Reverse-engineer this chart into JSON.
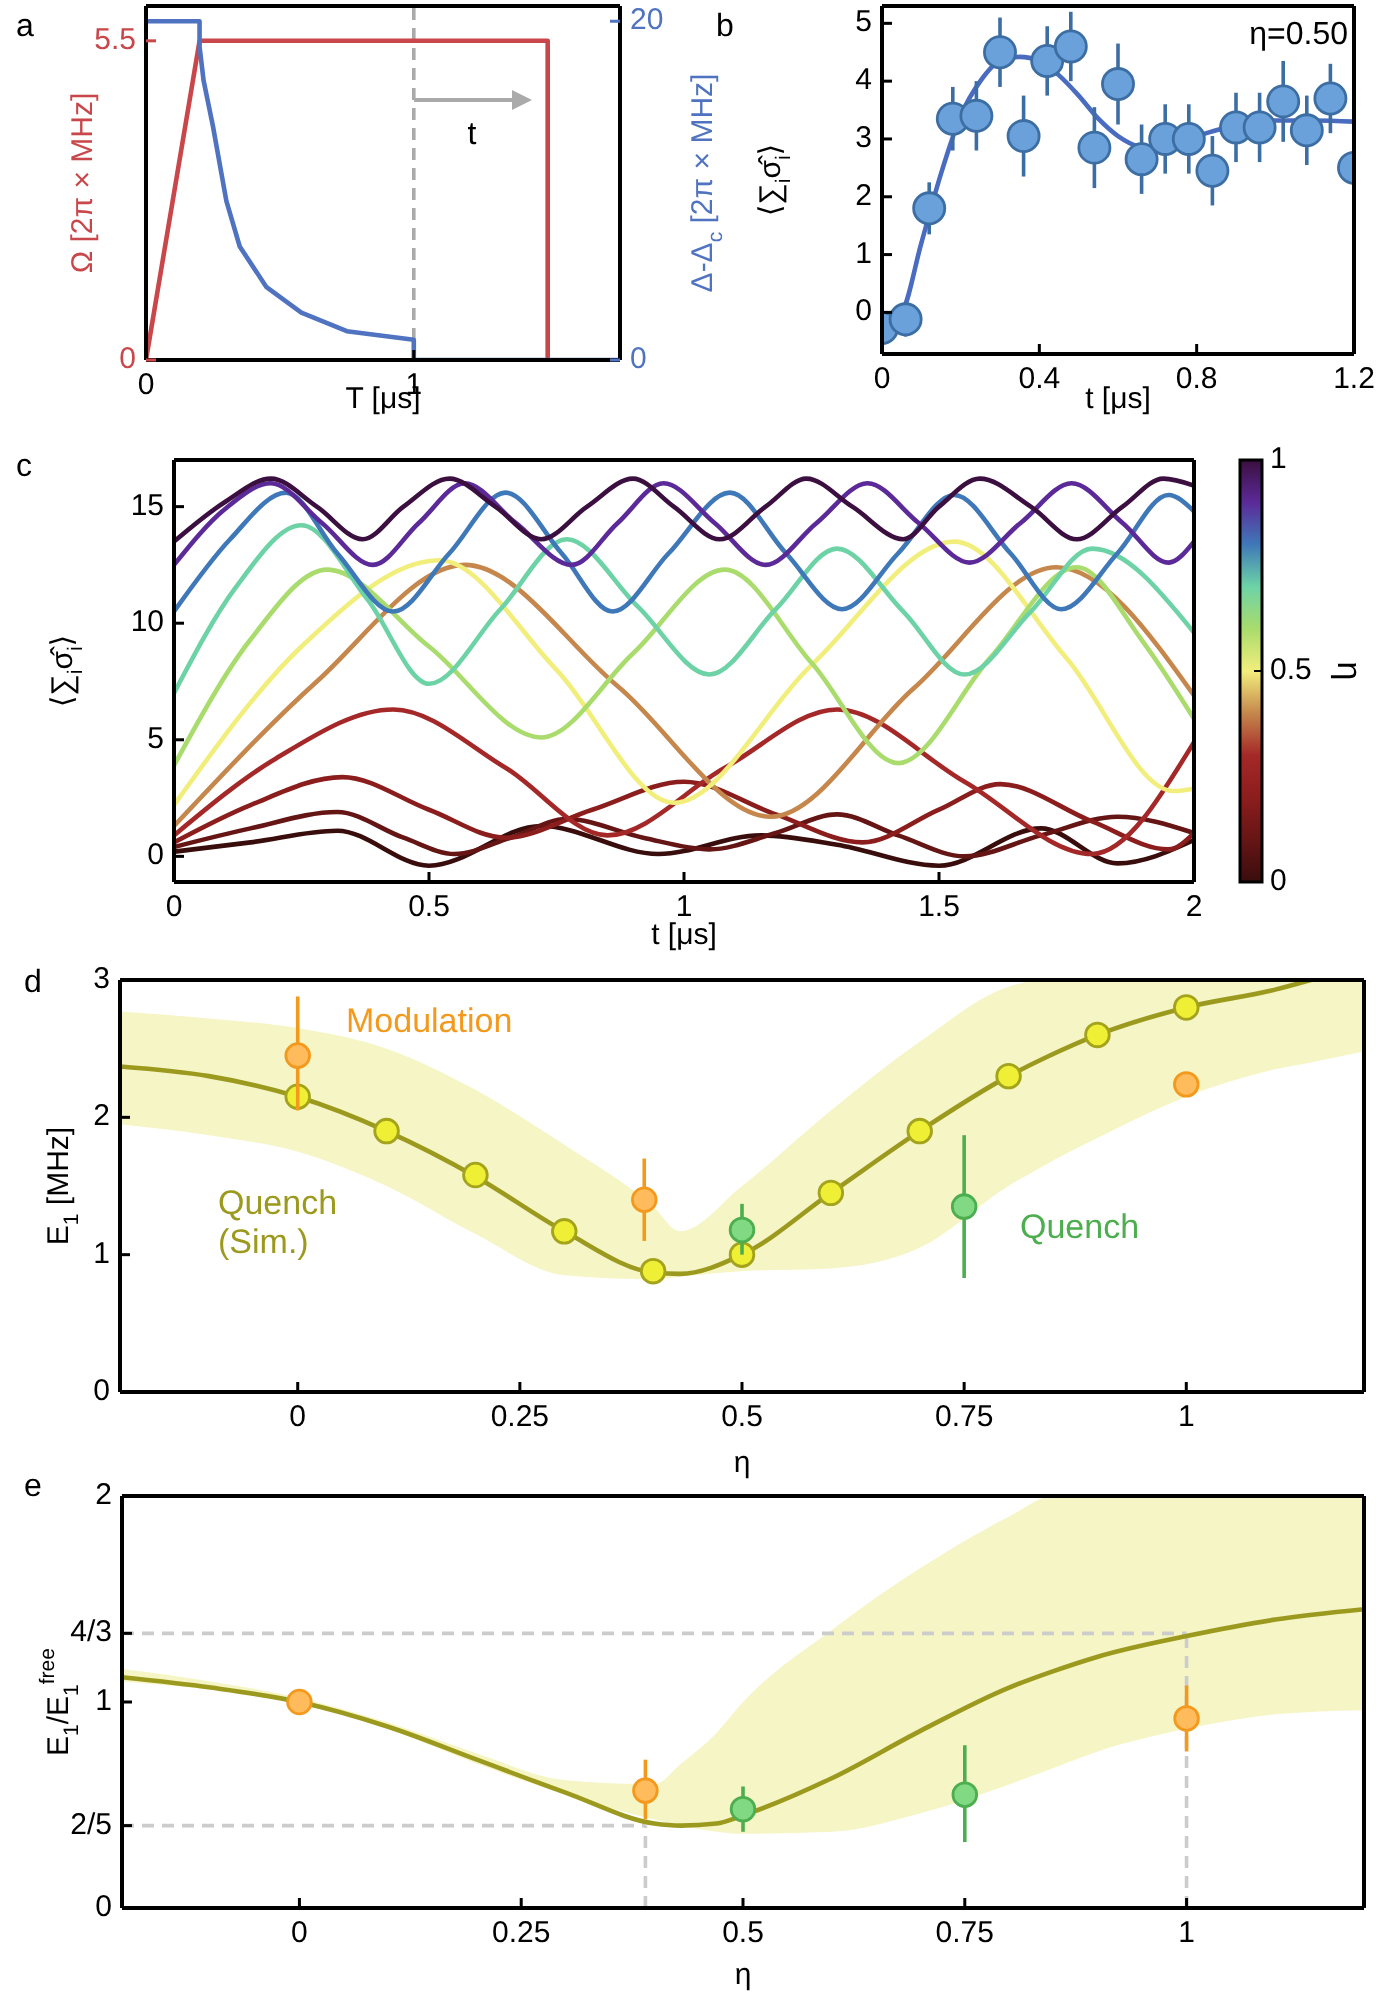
{
  "chart_data": [
    {
      "type": "line",
      "title": "a",
      "xlabel": "T [μs]",
      "ylabel": "Ω [2π × MHz]",
      "y2label": "Δ-Δ$_{c}$ [2π × MHz]",
      "xlim": [
        0,
        1.77
      ],
      "xticks": [
        0,
        1
      ],
      "ylim": [
        0,
        6.1
      ],
      "yticks": [
        0,
        5.5
      ],
      "y2lim": [
        0,
        20.9
      ],
      "y2ticks": [
        0,
        20
      ],
      "series": [
        {
          "color": "#c9474a",
          "x": [
            0,
            0.2,
            1.5,
            1.5
          ],
          "values": [
            0,
            5.5,
            5.5,
            0
          ]
        },
        {
          "color": "#4f73c0",
          "axis": "y2",
          "x": [
            0,
            0.2,
            0.2,
            0.215,
            0.25,
            0.3,
            0.35,
            0.45,
            0.58,
            0.75,
            1.0,
            1.0,
            1.77
          ],
          "values": [
            20,
            20,
            18.5,
            16.5,
            13.8,
            9.4,
            6.7,
            4.3,
            2.8,
            1.7,
            1.2,
            0,
            0
          ]
        }
      ],
      "ref_lines": [
        {
          "axis": "x",
          "value": 1,
          "color": "#aaaaaa",
          "line_style": "dashed"
        }
      ],
      "annotations": [
        "t"
      ]
    },
    {
      "type": "scatter",
      "title": "b",
      "xlabel": "t [μs]",
      "ylabel": "⟨∑$_{i}$σ̂$_{i}$⟩",
      "xlim": [
        0,
        1.2
      ],
      "xticks": [
        0,
        0.4,
        0.8,
        1.2
      ],
      "ylim": [
        -0.72,
        5.3
      ],
      "yticks": [
        0,
        1,
        2,
        3,
        4,
        5
      ],
      "series": [
        {
          "type": "line",
          "color": "#4a6cc0",
          "x": [
            0,
            0.05,
            0.1,
            0.15,
            0.2,
            0.25,
            0.3,
            0.35,
            0.4,
            0.45,
            0.5,
            0.55,
            0.6,
            0.65,
            0.7,
            0.75,
            0.8,
            0.85,
            0.9,
            0.95,
            1.0,
            1.1,
            1.2
          ],
          "values": [
            -0.2,
            0.0,
            1.2,
            2.4,
            3.4,
            4.0,
            4.35,
            4.42,
            4.35,
            4.1,
            3.75,
            3.35,
            3.05,
            2.88,
            2.85,
            2.92,
            3.05,
            3.15,
            3.25,
            3.3,
            3.32,
            3.32,
            3.3
          ]
        },
        {
          "marker": "circle",
          "color": "#3c6ea3",
          "x": [
            0,
            0.06,
            0.12,
            0.18,
            0.24,
            0.3,
            0.36,
            0.42,
            0.48,
            0.54,
            0.6,
            0.66,
            0.72,
            0.78,
            0.84,
            0.9,
            0.96,
            1.02,
            1.08,
            1.14,
            1.2
          ],
          "values": [
            -0.27,
            -0.12,
            1.8,
            3.35,
            3.4,
            4.5,
            3.05,
            4.35,
            4.6,
            2.85,
            3.95,
            2.65,
            3.0,
            3.0,
            2.45,
            3.2,
            3.2,
            3.65,
            3.15,
            3.7,
            2.5
          ],
          "errors": [
            0.3,
            0.3,
            0.45,
            0.55,
            0.6,
            0.6,
            0.7,
            0.6,
            0.6,
            0.7,
            0.7,
            0.6,
            0.6,
            0.6,
            0.6,
            0.6,
            0.6,
            0.7,
            0.6,
            0.6,
            null
          ]
        }
      ],
      "annotations": [
        "η=0.50"
      ]
    },
    {
      "type": "line",
      "title": "c",
      "xlabel": "t [μs]",
      "ylabel": "⟨∑$_{i}$σ̂$_{i}$⟩",
      "xlim": [
        0,
        2
      ],
      "xticks": [
        0,
        0.5,
        1,
        1.5,
        2
      ],
      "ylim": [
        -1.1,
        17
      ],
      "yticks": [
        0,
        5,
        10,
        15
      ],
      "clabel": "η",
      "clim": [
        0,
        1
      ],
      "cticks": [
        0,
        0.5,
        1
      ],
      "series": [
        {
          "color": "#3a0d0d",
          "x": [
            0,
            0.15,
            0.32,
            0.5,
            0.72,
            0.95,
            1.15,
            1.3,
            1.5,
            1.7,
            1.85,
            2
          ],
          "values": [
            0.2,
            0.6,
            1.1,
            -0.4,
            1.3,
            0.1,
            0.9,
            0.5,
            -0.4,
            1.2,
            -0.3,
            0.7
          ]
        },
        {
          "color": "#661515",
          "x": [
            0,
            0.15,
            0.32,
            0.45,
            0.55,
            0.66,
            0.77,
            0.92,
            1.05,
            1.18,
            1.3,
            1.42,
            1.55,
            1.7,
            1.85,
            2
          ],
          "values": [
            0.4,
            1.2,
            1.9,
            0.8,
            0.1,
            0.8,
            1.6,
            0.8,
            0.3,
            1,
            1.8,
            0.9,
            0,
            0.9,
            1.7,
            1.0
          ]
        },
        {
          "color": "#8c1d1d",
          "x": [
            0,
            0.15,
            0.33,
            0.5,
            0.65,
            0.82,
            1.0,
            1.18,
            1.35,
            1.5,
            1.62,
            1.8,
            1.95,
            2
          ],
          "values": [
            0.6,
            2.2,
            3.4,
            2,
            0.8,
            2,
            3.2,
            1.8,
            0.6,
            2,
            3.1,
            1.5,
            0.3,
            1.0
          ]
        },
        {
          "color": "#a52828",
          "x": [
            0,
            0.2,
            0.43,
            0.65,
            0.85,
            1.08,
            1.3,
            1.55,
            1.8,
            2
          ],
          "values": [
            0.9,
            4.2,
            6.3,
            3.8,
            0.9,
            3.8,
            6.3,
            3.2,
            0.1,
            4.9
          ]
        },
        {
          "color": "#c5874c",
          "x": [
            0,
            0.28,
            0.57,
            0.87,
            1.17,
            1.45,
            1.73,
            2
          ],
          "values": [
            1.3,
            7.5,
            12.5,
            7.3,
            1.7,
            7.2,
            12.4,
            6.9
          ]
        },
        {
          "color": "#f2ee7c",
          "x": [
            0,
            0.25,
            0.52,
            0.75,
            0.98,
            1.25,
            1.53,
            1.75,
            1.96,
            2
          ],
          "values": [
            2.2,
            9,
            12.7,
            8,
            2.3,
            8.2,
            13.5,
            8.5,
            2.8,
            2.9
          ]
        },
        {
          "color": "#a9dc6c",
          "x": [
            0,
            0.15,
            0.3,
            0.5,
            0.72,
            0.9,
            1.08,
            1.25,
            1.42,
            1.6,
            1.77,
            1.9,
            2
          ],
          "values": [
            3.9,
            9.3,
            12.3,
            9,
            5.1,
            8.7,
            12.3,
            8.3,
            4,
            8.5,
            12.4,
            9.2,
            5.9
          ]
        },
        {
          "color": "#6dd3a6",
          "x": [
            0,
            0.12,
            0.25,
            0.38,
            0.5,
            0.64,
            0.77,
            0.91,
            1.05,
            1.18,
            1.3,
            1.43,
            1.55,
            1.68,
            1.8,
            2
          ],
          "values": [
            7,
            11.5,
            14.2,
            11,
            7.4,
            10.6,
            13.6,
            10.7,
            7.8,
            10.6,
            13.2,
            10.5,
            7.8,
            10.5,
            13.2,
            9.6
          ]
        },
        {
          "color": "#3f78b8",
          "x": [
            0,
            0.11,
            0.22,
            0.32,
            0.43,
            0.54,
            0.65,
            0.76,
            0.86,
            0.97,
            1.09,
            1.2,
            1.31,
            1.42,
            1.53,
            1.64,
            1.74,
            1.85,
            1.95,
            2
          ],
          "values": [
            10.5,
            13.6,
            15.6,
            13,
            10.5,
            13,
            15.6,
            13,
            10.5,
            13,
            15.6,
            13,
            10.6,
            13,
            15.5,
            13,
            10.6,
            13,
            15.5,
            14.8
          ]
        },
        {
          "color": "#5b2a98",
          "x": [
            0,
            0.1,
            0.19,
            0.29,
            0.39,
            0.48,
            0.57,
            0.67,
            0.78,
            0.87,
            0.96,
            1.06,
            1.16,
            1.26,
            1.36,
            1.46,
            1.56,
            1.66,
            1.76,
            1.86,
            1.95,
            2
          ],
          "values": [
            12.5,
            14.9,
            16,
            14.3,
            12.5,
            14.3,
            16,
            14.3,
            12.5,
            14.3,
            16,
            14.3,
            12.5,
            14.3,
            16,
            14.3,
            12.6,
            14.3,
            16,
            14.3,
            12.6,
            13.5
          ]
        },
        {
          "color": "#3b0f3f",
          "x": [
            0,
            0.1,
            0.19,
            0.28,
            0.37,
            0.45,
            0.54,
            0.63,
            0.72,
            0.81,
            0.9,
            0.98,
            1.07,
            1.16,
            1.24,
            1.33,
            1.43,
            1.5,
            1.58,
            1.68,
            1.77,
            1.86,
            1.94,
            2
          ],
          "values": [
            13.5,
            15.2,
            16.2,
            15,
            13.6,
            15,
            16.2,
            15,
            13.6,
            15,
            16.2,
            15,
            13.6,
            15,
            16.2,
            15,
            13.6,
            15,
            16.2,
            15,
            13.6,
            15,
            16.2,
            15.9
          ]
        }
      ]
    },
    {
      "type": "scatter",
      "title": "d",
      "xlabel": "η",
      "ylabel": "E$_{1}$ [MHz]",
      "xlim": [
        -0.2,
        1.2
      ],
      "xticks": [
        0,
        0.25,
        0.5,
        0.75,
        1
      ],
      "ylim": [
        0,
        3
      ],
      "yticks": [
        0,
        1,
        2,
        3
      ],
      "series": [
        {
          "type": "line",
          "name": "Quench (Sim.)",
          "color": "#9c9a1e",
          "x": [
            -0.2,
            -0.1,
            0,
            0.1,
            0.2,
            0.3,
            0.4,
            0.43,
            0.5,
            0.6,
            0.7,
            0.8,
            0.84,
            0.9,
            1.0,
            1.1,
            1.14,
            1.2
          ],
          "values": [
            2.37,
            2.3,
            2.15,
            1.9,
            1.57,
            1.17,
            0.87,
            0.86,
            1.0,
            1.45,
            1.9,
            2.3,
            2.43,
            2.6,
            2.8,
            2.93,
            3.0,
            null
          ],
          "lower": [
            1.95,
            1.87,
            1.75,
            1.5,
            1.15,
            0.85,
            0.82,
            0.84,
            0.88,
            0.9,
            1.05,
            1.5,
            1.65,
            1.85,
            2.15,
            2.35,
            2.4,
            2.48
          ],
          "upper": [
            2.77,
            2.72,
            2.65,
            2.5,
            2.2,
            1.8,
            1.35,
            1.17,
            1.5,
            2.05,
            2.55,
            2.95,
            3.0,
            3.0,
            3.0,
            3.0,
            3.0,
            3.0
          ]
        },
        {
          "marker": "circle",
          "color": "#a3a31c",
          "x": [
            0,
            0.1,
            0.2,
            0.3,
            0.4,
            0.5,
            0.6,
            0.7,
            0.8,
            0.9,
            1
          ],
          "values": [
            2.15,
            1.9,
            1.58,
            1.17,
            0.88,
            1.0,
            1.45,
            1.9,
            2.3,
            2.6,
            2.8
          ]
        },
        {
          "marker": "circle",
          "name": "Modulation",
          "color": "#f39a1e",
          "x": [
            0,
            0.39,
            1.0
          ],
          "values": [
            2.45,
            1.4,
            2.24
          ],
          "errors": [
            [
              2.05,
              2.88
            ],
            [
              1.1,
              1.7
            ],
            null
          ]
        },
        {
          "marker": "circle",
          "name": "Quench",
          "color": "#4dae4f",
          "x": [
            0.5,
            0.75
          ],
          "values": [
            1.18,
            1.35
          ],
          "errors": [
            [
              1.0,
              1.37
            ],
            [
              0.83,
              1.87
            ]
          ]
        }
      ]
    },
    {
      "type": "scatter",
      "title": "e",
      "xlabel": "η",
      "ylabel": "E$_{1}$/E$_{1}$$^{free}$",
      "xlim": [
        -0.2,
        1.2
      ],
      "xticks": [
        0,
        0.25,
        0.5,
        0.75,
        1
      ],
      "ylim": [
        0,
        2
      ],
      "yticks": [
        0,
        {
          "value": 0.4,
          "label": "2/5"
        },
        1,
        {
          "value": 1.3333,
          "label": "4/3"
        },
        2
      ],
      "series": [
        {
          "type": "line",
          "color": "#9c9a1e",
          "x": [
            -0.2,
            -0.1,
            0,
            0.1,
            0.2,
            0.3,
            0.4,
            0.43,
            0.47,
            0.5,
            0.6,
            0.7,
            0.8,
            0.85,
            0.9,
            1.0,
            1.1,
            1.2
          ],
          "values": [
            1.12,
            1.07,
            1.0,
            0.88,
            0.72,
            0.56,
            0.41,
            0.4,
            0.41,
            0.45,
            0.63,
            0.86,
            1.07,
            1.15,
            1.22,
            1.32,
            1.4,
            1.45
          ],
          "lower": [
            1.1,
            1.06,
            1.0,
            0.87,
            0.7,
            0.55,
            0.43,
            0.4,
            0.37,
            0.36,
            0.37,
            0.46,
            0.6,
            0.68,
            0.76,
            0.87,
            0.94,
            0.96
          ],
          "upper": [
            1.16,
            1.1,
            1.02,
            0.9,
            0.75,
            0.62,
            0.6,
            0.7,
            0.85,
            1.0,
            1.35,
            1.65,
            1.9,
            2.0,
            2.0,
            2.0,
            2.0,
            2.0
          ]
        },
        {
          "marker": "circle",
          "color": "#f39a1e",
          "x": [
            0,
            0.39,
            1.0
          ],
          "values": [
            1.0,
            0.57,
            0.92
          ],
          "errors": [
            null,
            [
              0.43,
              0.72
            ],
            [
              0.76,
              1.08
            ]
          ]
        },
        {
          "marker": "circle",
          "color": "#4dae4f",
          "x": [
            0.5,
            0.75
          ],
          "values": [
            0.48,
            0.55
          ],
          "errors": [
            [
              0.37,
              0.59
            ],
            [
              0.32,
              0.79
            ]
          ]
        }
      ],
      "ref_lines": [
        {
          "axis": "y",
          "value": 0.4,
          "color": "#cccccc",
          "line_style": "dashed"
        },
        {
          "axis": "y",
          "value": 1.3333,
          "color": "#cccccc",
          "line_style": "dashed"
        },
        {
          "axis": "x",
          "value": 0.39,
          "color": "#cccccc",
          "line_style": "dashed"
        },
        {
          "axis": "x",
          "value": 1,
          "color": "#cccccc",
          "line_style": "dashed"
        }
      ]
    }
  ]
}
